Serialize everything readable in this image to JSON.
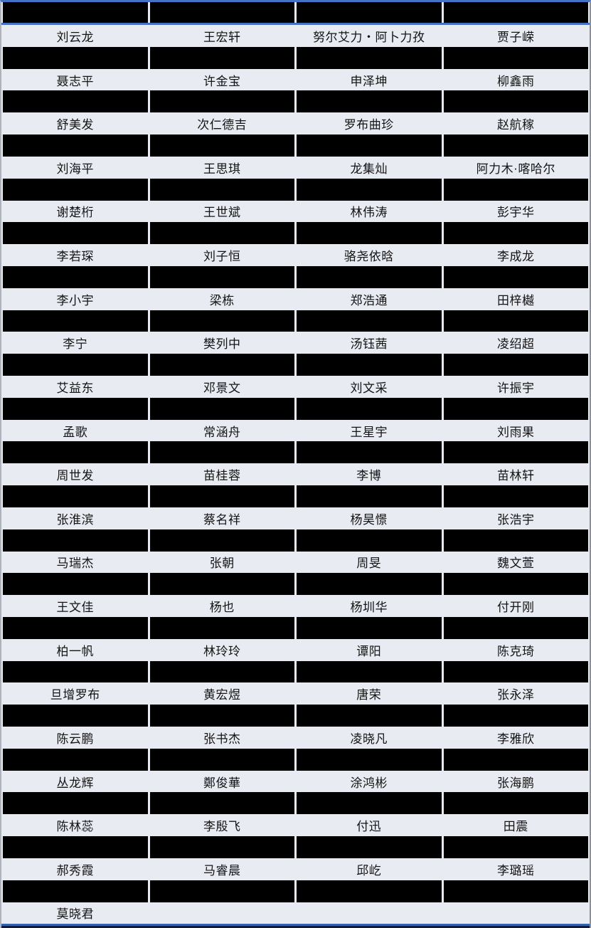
{
  "table": {
    "column_count": 4,
    "header": {
      "redacted": true
    },
    "rows": [
      [
        "刘云龙",
        "王宏轩",
        "努尔艾力・阿卜力孜",
        "贾子嵘"
      ],
      [
        "聂志平",
        "许金宝",
        "申泽坤",
        "柳鑫雨"
      ],
      [
        "舒美发",
        "次仁德吉",
        "罗布曲珍",
        "赵航稼"
      ],
      [
        "刘海平",
        "王思琪",
        "龙集灿",
        "阿力木·喀哈尔"
      ],
      [
        "谢楚桁",
        "王世斌",
        "林伟涛",
        "彭宇华"
      ],
      [
        "李若琛",
        "刘子恒",
        "骆尧依晗",
        "李成龙"
      ],
      [
        "李小宇",
        "梁栋",
        "郑浩通",
        "田梓樾"
      ],
      [
        "李宁",
        "樊列中",
        "汤钰茜",
        "凌绍超"
      ],
      [
        "艾益东",
        "邓景文",
        "刘文采",
        "许振宇"
      ],
      [
        "孟歌",
        "常涵舟",
        "王星宇",
        "刘雨果"
      ],
      [
        "周世发",
        "苗桂蓉",
        "李博",
        "苗林轩"
      ],
      [
        "张淮滨",
        "蔡名祥",
        "杨昊憬",
        "张浩宇"
      ],
      [
        "马瑞杰",
        "张朝",
        "周旻",
        "魏文萱"
      ],
      [
        "王文佳",
        "杨也",
        "杨圳华",
        "付开刚"
      ],
      [
        "柏一帆",
        "林玲玲",
        "谭阳",
        "陈克琦"
      ],
      [
        "旦增罗布",
        "黄宏煜",
        "唐荣",
        "张永泽"
      ],
      [
        "陈云鹏",
        "张书杰",
        "凌晓凡",
        "李雅欣"
      ],
      [
        "丛龙辉",
        "鄭俊華",
        "涂鸿彬",
        "张海鹏"
      ],
      [
        "陈林蕊",
        "李殷飞",
        "付迅",
        "田震"
      ],
      [
        "郝秀霞",
        "马睿晨",
        "邱屹",
        "李璐瑶"
      ],
      [
        "莫晓君",
        "",
        "",
        ""
      ]
    ]
  },
  "styles": {
    "accent_blue": "#4472C4",
    "bottom_blue": "#3B62AE",
    "row_background": "#E9EBF3",
    "redaction_color": "#000000"
  }
}
